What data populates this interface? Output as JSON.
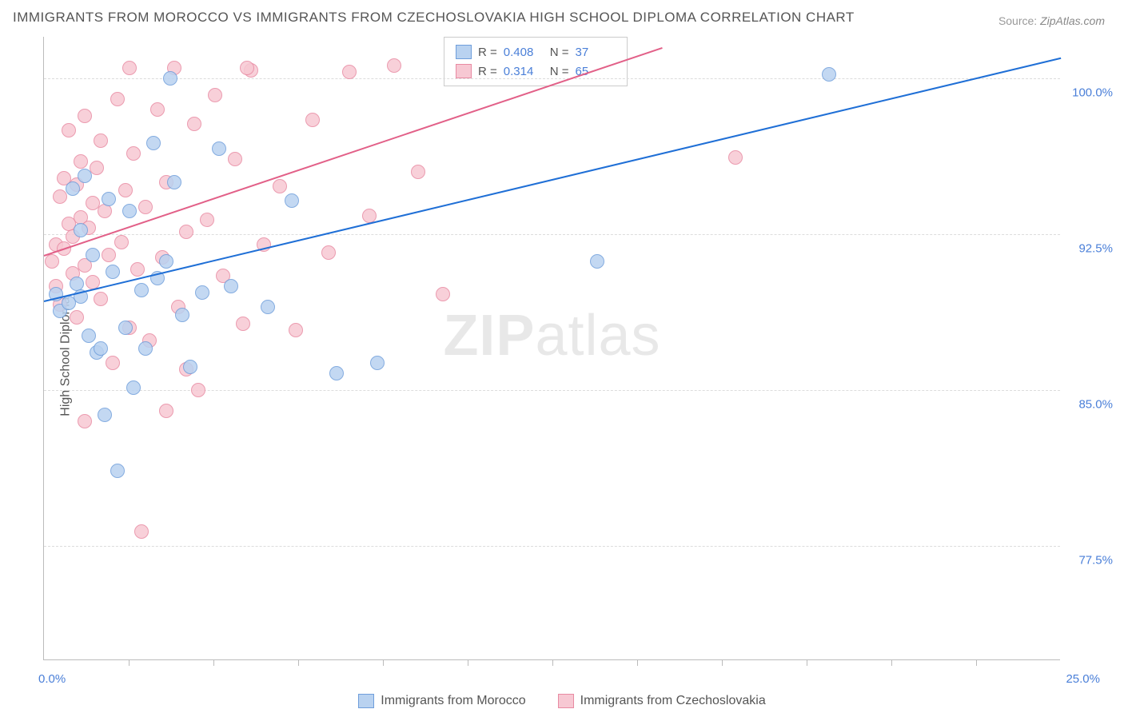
{
  "title": "IMMIGRANTS FROM MOROCCO VS IMMIGRANTS FROM CZECHOSLOVAKIA HIGH SCHOOL DIPLOMA CORRELATION CHART",
  "source_label": "Source:",
  "source_value": "ZipAtlas.com",
  "ylabel": "High School Diploma",
  "watermark_a": "ZIP",
  "watermark_b": "atlas",
  "chart": {
    "type": "scatter",
    "xlim": [
      0,
      25
    ],
    "ylim": [
      72,
      102
    ],
    "xticks": [
      0,
      25
    ],
    "xtick_labels": [
      "0.0%",
      "25.0%"
    ],
    "xtick_minor": [
      2.08,
      4.17,
      6.25,
      8.33,
      10.42,
      12.5,
      14.58,
      16.67,
      18.75,
      20.83,
      22.92
    ],
    "yticks": [
      77.5,
      85.0,
      92.5,
      100.0
    ],
    "ytick_labels": [
      "77.5%",
      "85.0%",
      "92.5%",
      "100.0%"
    ],
    "background_color": "#ffffff",
    "grid_color": "#dcdcdc",
    "axis_color": "#bbbbbb",
    "series": [
      {
        "name": "Immigrants from Morocco",
        "fill_color": "#b9d2f0",
        "stroke_color": "#6f9edb",
        "trend_color": "#1f6fd6",
        "R": "0.408",
        "N": "37",
        "trend": {
          "x1": 0,
          "y1": 89.3,
          "x2": 25,
          "y2": 101.0
        },
        "points": [
          [
            0.3,
            89.6
          ],
          [
            0.4,
            88.8
          ],
          [
            0.6,
            89.2
          ],
          [
            0.7,
            94.7
          ],
          [
            0.8,
            90.1
          ],
          [
            0.9,
            92.7
          ],
          [
            0.9,
            89.5
          ],
          [
            1.0,
            95.3
          ],
          [
            1.1,
            87.6
          ],
          [
            1.2,
            91.5
          ],
          [
            1.3,
            86.8
          ],
          [
            1.4,
            87.0
          ],
          [
            1.5,
            83.8
          ],
          [
            1.6,
            94.2
          ],
          [
            1.7,
            90.7
          ],
          [
            1.8,
            81.1
          ],
          [
            2.0,
            88.0
          ],
          [
            2.1,
            93.6
          ],
          [
            2.2,
            85.1
          ],
          [
            2.4,
            89.8
          ],
          [
            2.5,
            87.0
          ],
          [
            2.7,
            96.9
          ],
          [
            2.8,
            90.4
          ],
          [
            3.0,
            91.2
          ],
          [
            3.2,
            95.0
          ],
          [
            3.4,
            88.6
          ],
          [
            3.6,
            86.1
          ],
          [
            3.9,
            89.7
          ],
          [
            4.3,
            96.6
          ],
          [
            4.6,
            90.0
          ],
          [
            5.5,
            89.0
          ],
          [
            6.1,
            94.1
          ],
          [
            7.2,
            85.8
          ],
          [
            8.2,
            86.3
          ],
          [
            13.6,
            91.2
          ],
          [
            19.3,
            100.2
          ],
          [
            3.1,
            100.0
          ]
        ]
      },
      {
        "name": "Immigrants from Czechoslovakia",
        "fill_color": "#f7c8d3",
        "stroke_color": "#e88aa2",
        "trend_color": "#e26088",
        "R": "0.314",
        "N": "65",
        "trend": {
          "x1": 0,
          "y1": 91.5,
          "x2": 15.2,
          "y2": 101.5
        },
        "points": [
          [
            0.2,
            91.2
          ],
          [
            0.3,
            92.0
          ],
          [
            0.3,
            90.0
          ],
          [
            0.4,
            94.3
          ],
          [
            0.4,
            89.1
          ],
          [
            0.5,
            95.2
          ],
          [
            0.5,
            91.8
          ],
          [
            0.6,
            93.0
          ],
          [
            0.6,
            97.5
          ],
          [
            0.7,
            90.6
          ],
          [
            0.7,
            92.4
          ],
          [
            0.8,
            94.9
          ],
          [
            0.8,
            88.5
          ],
          [
            0.9,
            96.0
          ],
          [
            0.9,
            93.3
          ],
          [
            1.0,
            91.0
          ],
          [
            1.0,
            98.2
          ],
          [
            1.1,
            92.8
          ],
          [
            1.2,
            94.0
          ],
          [
            1.2,
            90.2
          ],
          [
            1.3,
            95.7
          ],
          [
            1.4,
            89.4
          ],
          [
            1.4,
            97.0
          ],
          [
            1.5,
            93.6
          ],
          [
            1.6,
            91.5
          ],
          [
            1.7,
            86.3
          ],
          [
            1.8,
            99.0
          ],
          [
            1.9,
            92.1
          ],
          [
            2.0,
            94.6
          ],
          [
            2.1,
            88.0
          ],
          [
            2.2,
            96.4
          ],
          [
            2.3,
            90.8
          ],
          [
            2.4,
            78.2
          ],
          [
            2.5,
            93.8
          ],
          [
            2.6,
            87.4
          ],
          [
            2.8,
            98.5
          ],
          [
            2.9,
            91.4
          ],
          [
            3.0,
            95.0
          ],
          [
            3.2,
            100.5
          ],
          [
            3.3,
            89.0
          ],
          [
            3.5,
            92.6
          ],
          [
            3.7,
            97.8
          ],
          [
            3.8,
            85.0
          ],
          [
            4.0,
            93.2
          ],
          [
            4.2,
            99.2
          ],
          [
            4.4,
            90.5
          ],
          [
            4.7,
            96.1
          ],
          [
            4.9,
            88.2
          ],
          [
            5.1,
            100.4
          ],
          [
            5.4,
            92.0
          ],
          [
            5.8,
            94.8
          ],
          [
            6.2,
            87.9
          ],
          [
            6.6,
            98.0
          ],
          [
            7.0,
            91.6
          ],
          [
            7.5,
            100.3
          ],
          [
            8.0,
            93.4
          ],
          [
            8.6,
            100.6
          ],
          [
            9.2,
            95.5
          ],
          [
            9.8,
            89.6
          ],
          [
            17.0,
            96.2
          ],
          [
            3.0,
            84.0
          ],
          [
            1.0,
            83.5
          ],
          [
            3.5,
            86.0
          ],
          [
            5.0,
            100.5
          ],
          [
            2.1,
            100.5
          ]
        ]
      }
    ]
  },
  "stats_labels": {
    "R": "R =",
    "N": "N ="
  },
  "legend": {
    "items": [
      {
        "label": "Immigrants from Morocco"
      },
      {
        "label": "Immigrants from Czechoslovakia"
      }
    ]
  }
}
